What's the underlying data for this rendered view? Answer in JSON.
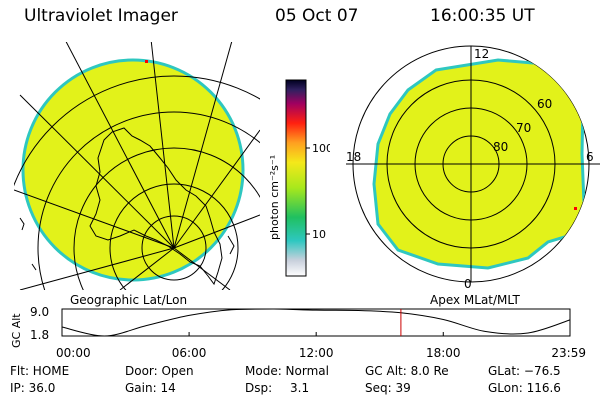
{
  "header": {
    "instrument": "Ultraviolet Imager",
    "date": "05 Oct 07",
    "time": "16:00:35 UT"
  },
  "geo_panel": {
    "label": "Geographic Lat/Lon"
  },
  "apex_panel": {
    "label": "Apex MLat/MLT",
    "mlt_labels": {
      "top": "12",
      "left": "18",
      "right": "6",
      "bottom": "0"
    },
    "lat_labels": [
      "60",
      "70",
      "80"
    ]
  },
  "colorbar": {
    "label": "photon cm⁻²s⁻¹",
    "ticks": [
      "100",
      "10"
    ]
  },
  "orbit": {
    "axis_label": "GC Alt",
    "y_ticks": [
      "9.0",
      "1.8"
    ],
    "x_ticks": [
      "00:00",
      "06:00",
      "12:00",
      "18:00",
      "23:59"
    ]
  },
  "info": {
    "row1": {
      "flt": "Flt: HOME",
      "door": "Door: Open",
      "mode": "Mode: Normal",
      "gcalt": "GC Alt: 8.0 Re",
      "glat": "GLat: −76.5"
    },
    "row2": {
      "ip": "IP: 36.0",
      "gain": "Gain: 14",
      "dsp_label": "Dsp:",
      "dsp_value": "3.1",
      "seq": "Seq: 39",
      "glon": "GLon: 116.6"
    }
  },
  "colors": {
    "fill": "#e2f21a",
    "edge": "#2ec7c0",
    "marker": "#ff0000",
    "cursor": "#cc0000"
  },
  "chart_data": {
    "type": "line",
    "title": "",
    "xlabel": "",
    "ylabel": "GC Alt",
    "x": [
      "00:00",
      "02:00",
      "04:00",
      "06:00",
      "08:00",
      "10:00",
      "12:00",
      "14:00",
      "16:00",
      "18:00",
      "20:00",
      "22:00",
      "23:59"
    ],
    "values": [
      4.2,
      1.8,
      4.6,
      7.3,
      8.8,
      9.0,
      8.7,
      8.6,
      8.0,
      6.2,
      3.0,
      2.6,
      6.1
    ],
    "ylim": [
      1.8,
      9.0
    ],
    "cursor_x": "16:00",
    "colorbar_scale": "log"
  }
}
